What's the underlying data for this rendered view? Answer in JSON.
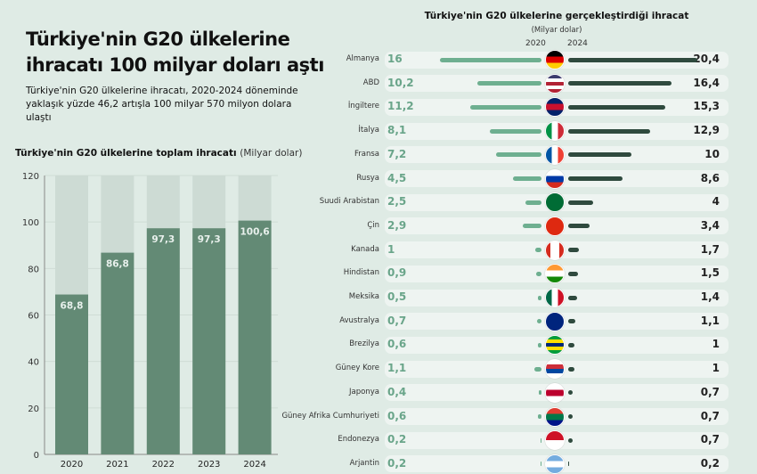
{
  "header": {
    "title": "Türkiye'nin G20 ülkelerine ihracatı 100 milyar doları aştı",
    "subtitle": "Türkiye'nin G20 ülkelerine ihracatı, 2020-2024 döneminde yaklaşık yüzde 46,2 artışla 100 milyar 570 milyon dolara ulaştı"
  },
  "chart_data": [
    {
      "type": "bar",
      "title": "Türkiye'nin G20 ülkelerine toplam ihracatı",
      "unit": "(Milyar dolar)",
      "categories": [
        "2020",
        "2021",
        "2022",
        "2023",
        "2024"
      ],
      "values": [
        68.8,
        86.8,
        97.3,
        97.3,
        100.6
      ],
      "labels": [
        "68,8",
        "86,8",
        "97,3",
        "97,3",
        "100,6"
      ],
      "ylim": [
        0,
        120
      ],
      "yticks": [
        "0",
        "20",
        "40",
        "60",
        "80",
        "100",
        "120"
      ],
      "colors": {
        "bar": "#638a75",
        "track": "#cddbd4"
      }
    },
    {
      "type": "bar",
      "title": "Türkiye'nin G20 ülkelerine gerçekleştirdiği ihracat",
      "unit": "(Milyar dolar)",
      "series_names": [
        "2020",
        "2024"
      ],
      "colors": {
        "2020": "#6eaf90",
        "2024": "#2f4a3e"
      },
      "rows": [
        {
          "country": "Almanya",
          "v2020": 16,
          "v2024": 20.4,
          "l2020": "16",
          "l2024": "20,4",
          "flag": {
            "dir": "h",
            "c": [
              "#000",
              "#d00",
              "#fc0"
            ]
          }
        },
        {
          "country": "ABD",
          "v2020": 10.2,
          "v2024": 16.4,
          "l2020": "10,2",
          "l2024": "16,4",
          "flag": {
            "dir": "h",
            "c": [
              "#3c3b6e",
              "#fff",
              "#b22234",
              "#fff",
              "#b22234"
            ]
          }
        },
        {
          "country": "İngiltere",
          "v2020": 11.2,
          "v2024": 15.3,
          "l2020": "11,2",
          "l2024": "15,3",
          "flag": {
            "dir": "h",
            "c": [
              "#012169",
              "#c8102e",
              "#012169"
            ]
          }
        },
        {
          "country": "İtalya",
          "v2020": 8.1,
          "v2024": 12.9,
          "l2020": "8,1",
          "l2024": "12,9",
          "flag": {
            "dir": "v",
            "c": [
              "#009246",
              "#fff",
              "#ce2b37"
            ]
          }
        },
        {
          "country": "Fransa",
          "v2020": 7.2,
          "v2024": 10,
          "l2020": "7,2",
          "l2024": "10",
          "flag": {
            "dir": "v",
            "c": [
              "#0055a4",
              "#fff",
              "#ef4135"
            ]
          }
        },
        {
          "country": "Rusya",
          "v2020": 4.5,
          "v2024": 8.6,
          "l2020": "4,5",
          "l2024": "8,6",
          "flag": {
            "dir": "h",
            "c": [
              "#fff",
              "#0039a6",
              "#d52b1e"
            ]
          }
        },
        {
          "country": "Suudi Arabistan",
          "v2020": 2.5,
          "v2024": 4,
          "l2020": "2,5",
          "l2024": "4",
          "flag": {
            "dir": "h",
            "c": [
              "#006c35"
            ]
          }
        },
        {
          "country": "Çin",
          "v2020": 2.9,
          "v2024": 3.4,
          "l2020": "2,9",
          "l2024": "3,4",
          "flag": {
            "dir": "h",
            "c": [
              "#de2910"
            ]
          }
        },
        {
          "country": "Kanada",
          "v2020": 1,
          "v2024": 1.7,
          "l2020": "1",
          "l2024": "1,7",
          "flag": {
            "dir": "v",
            "c": [
              "#d52b1e",
              "#fff",
              "#fff",
              "#d52b1e"
            ]
          }
        },
        {
          "country": "Hindistan",
          "v2020": 0.9,
          "v2024": 1.5,
          "l2020": "0,9",
          "l2024": "1,5",
          "flag": {
            "dir": "h",
            "c": [
              "#ff9933",
              "#fff",
              "#138808"
            ]
          }
        },
        {
          "country": "Meksika",
          "v2020": 0.5,
          "v2024": 1.4,
          "l2020": "0,5",
          "l2024": "1,4",
          "flag": {
            "dir": "v",
            "c": [
              "#006847",
              "#fff",
              "#ce1126"
            ]
          }
        },
        {
          "country": "Avustralya",
          "v2020": 0.7,
          "v2024": 1.1,
          "l2020": "0,7",
          "l2024": "1,1",
          "flag": {
            "dir": "h",
            "c": [
              "#00247d"
            ]
          }
        },
        {
          "country": "Brezilya",
          "v2020": 0.6,
          "v2024": 1,
          "l2020": "0,6",
          "l2024": "1",
          "flag": {
            "dir": "h",
            "c": [
              "#009c3b",
              "#ffdf00",
              "#002776",
              "#ffdf00",
              "#009c3b"
            ]
          }
        },
        {
          "country": "Güney Kore",
          "v2020": 1.1,
          "v2024": 1,
          "l2020": "1,1",
          "l2024": "1",
          "flag": {
            "dir": "h",
            "c": [
              "#fff",
              "#cd2e3a",
              "#0047a0",
              "#fff"
            ]
          }
        },
        {
          "country": "Japonya",
          "v2020": 0.4,
          "v2024": 0.7,
          "l2020": "0,4",
          "l2024": "0,7",
          "flag": {
            "dir": "h",
            "c": [
              "#fff",
              "#bc002d",
              "#fff"
            ]
          }
        },
        {
          "country": "Güney Afrika Cumhuriyeti",
          "v2020": 0.6,
          "v2024": 0.7,
          "l2020": "0,6",
          "l2024": "0,7",
          "flag": {
            "dir": "h",
            "c": [
              "#e03c31",
              "#007749",
              "#001489"
            ]
          }
        },
        {
          "country": "Endonezya",
          "v2020": 0.2,
          "v2024": 0.7,
          "l2020": "0,2",
          "l2024": "0,7",
          "flag": {
            "dir": "h",
            "c": [
              "#ce1126",
              "#fff"
            ]
          }
        },
        {
          "country": "Arjantin",
          "v2020": 0.2,
          "v2024": 0.2,
          "l2020": "0,2",
          "l2024": "0,2",
          "flag": {
            "dir": "h",
            "c": [
              "#74acdf",
              "#fff",
              "#74acdf"
            ]
          }
        }
      ]
    }
  ]
}
